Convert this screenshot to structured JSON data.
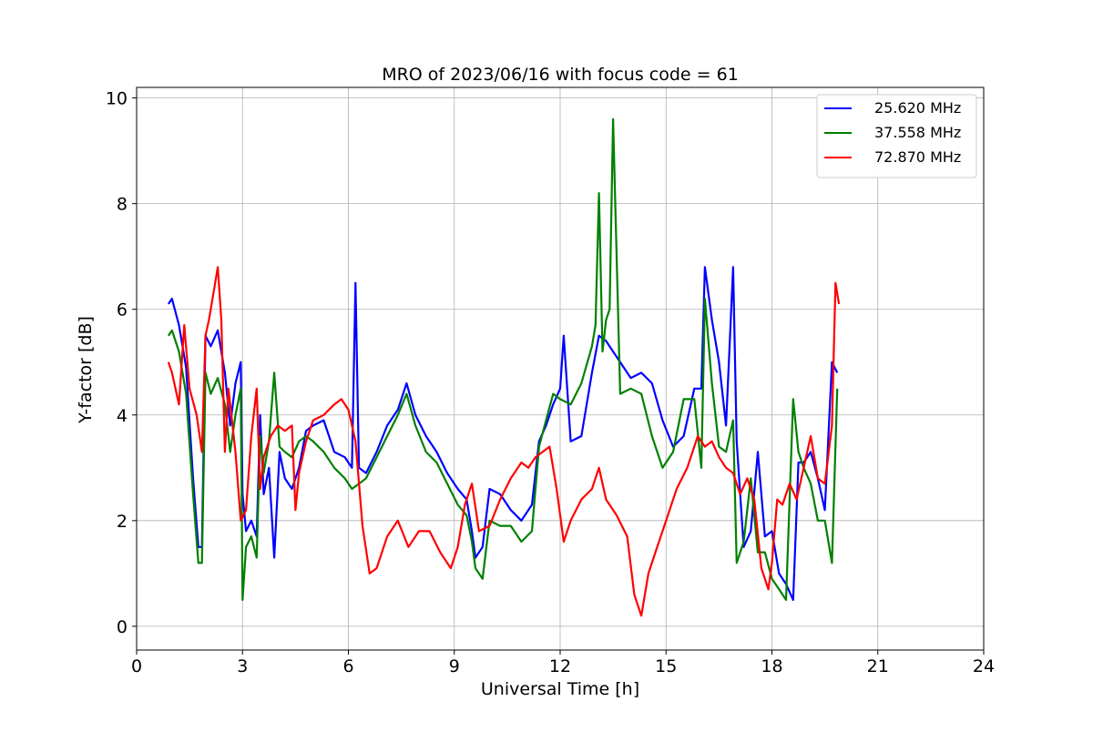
{
  "chart_data": {
    "type": "line",
    "title": "MRO of 2023/06/16 with focus code = 61",
    "xlabel": "Universal Time [h]",
    "ylabel": "Y-factor [dB]",
    "xlim": [
      0,
      24
    ],
    "ylim": [
      -0.45,
      10.2
    ],
    "xticks": [
      0,
      3,
      6,
      9,
      12,
      15,
      18,
      21,
      24
    ],
    "yticks": [
      0,
      2,
      4,
      6,
      8,
      10
    ],
    "grid": true,
    "legend_position": "top-right",
    "series": [
      {
        "name": "25.620 MHz",
        "color": "#0000ff",
        "x": [
          0.9,
          1.0,
          1.2,
          1.4,
          1.6,
          1.75,
          1.85,
          1.95,
          2.1,
          2.3,
          2.5,
          2.65,
          2.8,
          2.95,
          3.0,
          3.1,
          3.25,
          3.4,
          3.5,
          3.6,
          3.75,
          3.9,
          4.05,
          4.2,
          4.4,
          4.6,
          4.8,
          5.0,
          5.3,
          5.6,
          5.9,
          6.1,
          6.2,
          6.3,
          6.5,
          6.8,
          7.1,
          7.4,
          7.65,
          7.9,
          8.2,
          8.5,
          8.8,
          9.1,
          9.35,
          9.5,
          9.6,
          9.8,
          10.0,
          10.3,
          10.6,
          10.9,
          11.2,
          11.4,
          11.6,
          11.8,
          12.0,
          12.1,
          12.3,
          12.6,
          12.9,
          13.1,
          13.3,
          13.5,
          13.7,
          14.0,
          14.3,
          14.6,
          14.9,
          15.2,
          15.5,
          15.8,
          16.0,
          16.1,
          16.3,
          16.5,
          16.7,
          16.9,
          17.0,
          17.2,
          17.4,
          17.6,
          17.8,
          18.0,
          18.2,
          18.4,
          18.6,
          18.75,
          18.9,
          19.1,
          19.3,
          19.5,
          19.7,
          19.85
        ],
        "values": [
          6.1,
          6.2,
          5.7,
          4.9,
          2.8,
          1.5,
          1.5,
          5.5,
          5.3,
          5.6,
          4.8,
          3.8,
          4.6,
          5.0,
          2.5,
          1.8,
          2.0,
          1.7,
          4.0,
          2.5,
          3.0,
          1.3,
          3.3,
          2.8,
          2.6,
          3.0,
          3.7,
          3.8,
          3.9,
          3.3,
          3.2,
          3.0,
          6.5,
          3.0,
          2.9,
          3.3,
          3.8,
          4.1,
          4.6,
          4.0,
          3.6,
          3.3,
          2.9,
          2.6,
          2.4,
          1.8,
          1.3,
          1.5,
          2.6,
          2.5,
          2.2,
          2.0,
          2.3,
          3.5,
          3.8,
          4.2,
          4.5,
          5.5,
          3.5,
          3.6,
          4.8,
          5.5,
          5.4,
          5.2,
          5.0,
          4.7,
          4.8,
          4.6,
          3.9,
          3.4,
          3.6,
          4.5,
          4.5,
          6.8,
          5.8,
          5.0,
          3.8,
          6.8,
          3.5,
          1.5,
          1.8,
          3.3,
          1.7,
          1.8,
          1.0,
          0.8,
          0.5,
          3.1,
          3.1,
          3.3,
          2.8,
          2.2,
          5.0,
          4.8
        ]
      },
      {
        "name": "37.558 MHz",
        "color": "#008000",
        "x": [
          0.9,
          1.0,
          1.2,
          1.4,
          1.6,
          1.75,
          1.85,
          1.95,
          2.1,
          2.3,
          2.5,
          2.65,
          2.8,
          2.95,
          3.0,
          3.1,
          3.25,
          3.4,
          3.5,
          3.6,
          3.75,
          3.9,
          4.05,
          4.2,
          4.4,
          4.6,
          4.8,
          5.0,
          5.3,
          5.6,
          5.9,
          6.1,
          6.3,
          6.5,
          6.8,
          7.1,
          7.4,
          7.65,
          7.9,
          8.2,
          8.5,
          8.8,
          9.1,
          9.35,
          9.5,
          9.6,
          9.8,
          10.0,
          10.3,
          10.6,
          10.9,
          11.2,
          11.4,
          11.6,
          11.8,
          12.0,
          12.3,
          12.6,
          12.9,
          13.0,
          13.1,
          13.2,
          13.3,
          13.4,
          13.5,
          13.7,
          14.0,
          14.3,
          14.6,
          14.9,
          15.2,
          15.5,
          15.8,
          16.0,
          16.1,
          16.3,
          16.5,
          16.7,
          16.9,
          17.0,
          17.2,
          17.4,
          17.6,
          17.8,
          18.0,
          18.2,
          18.4,
          18.6,
          18.75,
          18.9,
          19.1,
          19.3,
          19.5,
          19.7,
          19.85
        ],
        "values": [
          5.5,
          5.6,
          5.2,
          4.4,
          2.5,
          1.2,
          1.2,
          4.8,
          4.4,
          4.7,
          4.2,
          3.3,
          4.0,
          4.5,
          0.5,
          1.5,
          1.7,
          1.3,
          3.6,
          2.9,
          3.5,
          4.8,
          3.4,
          3.3,
          3.2,
          3.5,
          3.6,
          3.5,
          3.3,
          3.0,
          2.8,
          2.6,
          2.7,
          2.8,
          3.2,
          3.6,
          4.0,
          4.4,
          3.8,
          3.3,
          3.1,
          2.7,
          2.3,
          2.1,
          1.6,
          1.1,
          0.9,
          2.0,
          1.9,
          1.9,
          1.6,
          1.8,
          3.4,
          3.9,
          4.4,
          4.3,
          4.2,
          4.6,
          5.3,
          5.7,
          8.2,
          5.2,
          5.8,
          6.0,
          9.6,
          4.4,
          4.5,
          4.4,
          3.6,
          3.0,
          3.3,
          4.3,
          4.3,
          3.0,
          6.2,
          4.6,
          3.4,
          3.3,
          3.9,
          1.2,
          1.6,
          2.8,
          1.4,
          1.4,
          0.9,
          0.7,
          0.5,
          4.3,
          3.3,
          3.0,
          2.7,
          2.0,
          2.0,
          1.2,
          4.5
        ]
      },
      {
        "name": "72.870 MHz",
        "color": "#ff0000",
        "x": [
          0.9,
          1.0,
          1.2,
          1.35,
          1.5,
          1.7,
          1.85,
          1.95,
          2.05,
          2.2,
          2.3,
          2.4,
          2.5,
          2.6,
          2.8,
          2.95,
          3.1,
          3.25,
          3.4,
          3.5,
          3.6,
          3.8,
          4.0,
          4.2,
          4.4,
          4.5,
          4.6,
          4.8,
          5.0,
          5.3,
          5.6,
          5.8,
          6.0,
          6.2,
          6.4,
          6.6,
          6.8,
          7.1,
          7.4,
          7.7,
          8.0,
          8.3,
          8.6,
          8.9,
          9.1,
          9.3,
          9.5,
          9.7,
          10.0,
          10.3,
          10.6,
          10.9,
          11.1,
          11.3,
          11.5,
          11.7,
          11.9,
          12.1,
          12.3,
          12.6,
          12.9,
          13.1,
          13.3,
          13.6,
          13.9,
          14.1,
          14.3,
          14.5,
          14.7,
          15.0,
          15.3,
          15.6,
          15.9,
          16.1,
          16.3,
          16.5,
          16.7,
          16.9,
          17.1,
          17.3,
          17.5,
          17.7,
          17.9,
          18.0,
          18.15,
          18.3,
          18.5,
          18.7,
          18.9,
          19.1,
          19.3,
          19.5,
          19.7,
          19.8,
          19.9
        ],
        "values": [
          5.0,
          4.8,
          4.2,
          5.7,
          4.5,
          4.0,
          3.3,
          5.5,
          5.8,
          6.4,
          6.8,
          5.8,
          3.3,
          4.5,
          3.3,
          2.0,
          2.2,
          3.6,
          4.5,
          2.6,
          3.2,
          3.6,
          3.8,
          3.7,
          3.8,
          2.2,
          2.9,
          3.5,
          3.9,
          4.0,
          4.2,
          4.3,
          4.1,
          3.5,
          1.9,
          1.0,
          1.1,
          1.7,
          2.0,
          1.5,
          1.8,
          1.8,
          1.4,
          1.1,
          1.5,
          2.3,
          2.7,
          1.8,
          1.9,
          2.4,
          2.8,
          3.1,
          3.0,
          3.2,
          3.3,
          3.4,
          2.6,
          1.6,
          2.0,
          2.4,
          2.6,
          3.0,
          2.4,
          2.1,
          1.7,
          0.6,
          0.2,
          1.0,
          1.4,
          2.0,
          2.6,
          3.0,
          3.6,
          3.4,
          3.5,
          3.2,
          3.0,
          2.9,
          2.5,
          2.8,
          2.4,
          1.1,
          0.7,
          1.2,
          2.4,
          2.3,
          2.7,
          2.4,
          3.0,
          3.6,
          2.8,
          2.7,
          3.8,
          6.5,
          6.1
        ]
      }
    ]
  }
}
